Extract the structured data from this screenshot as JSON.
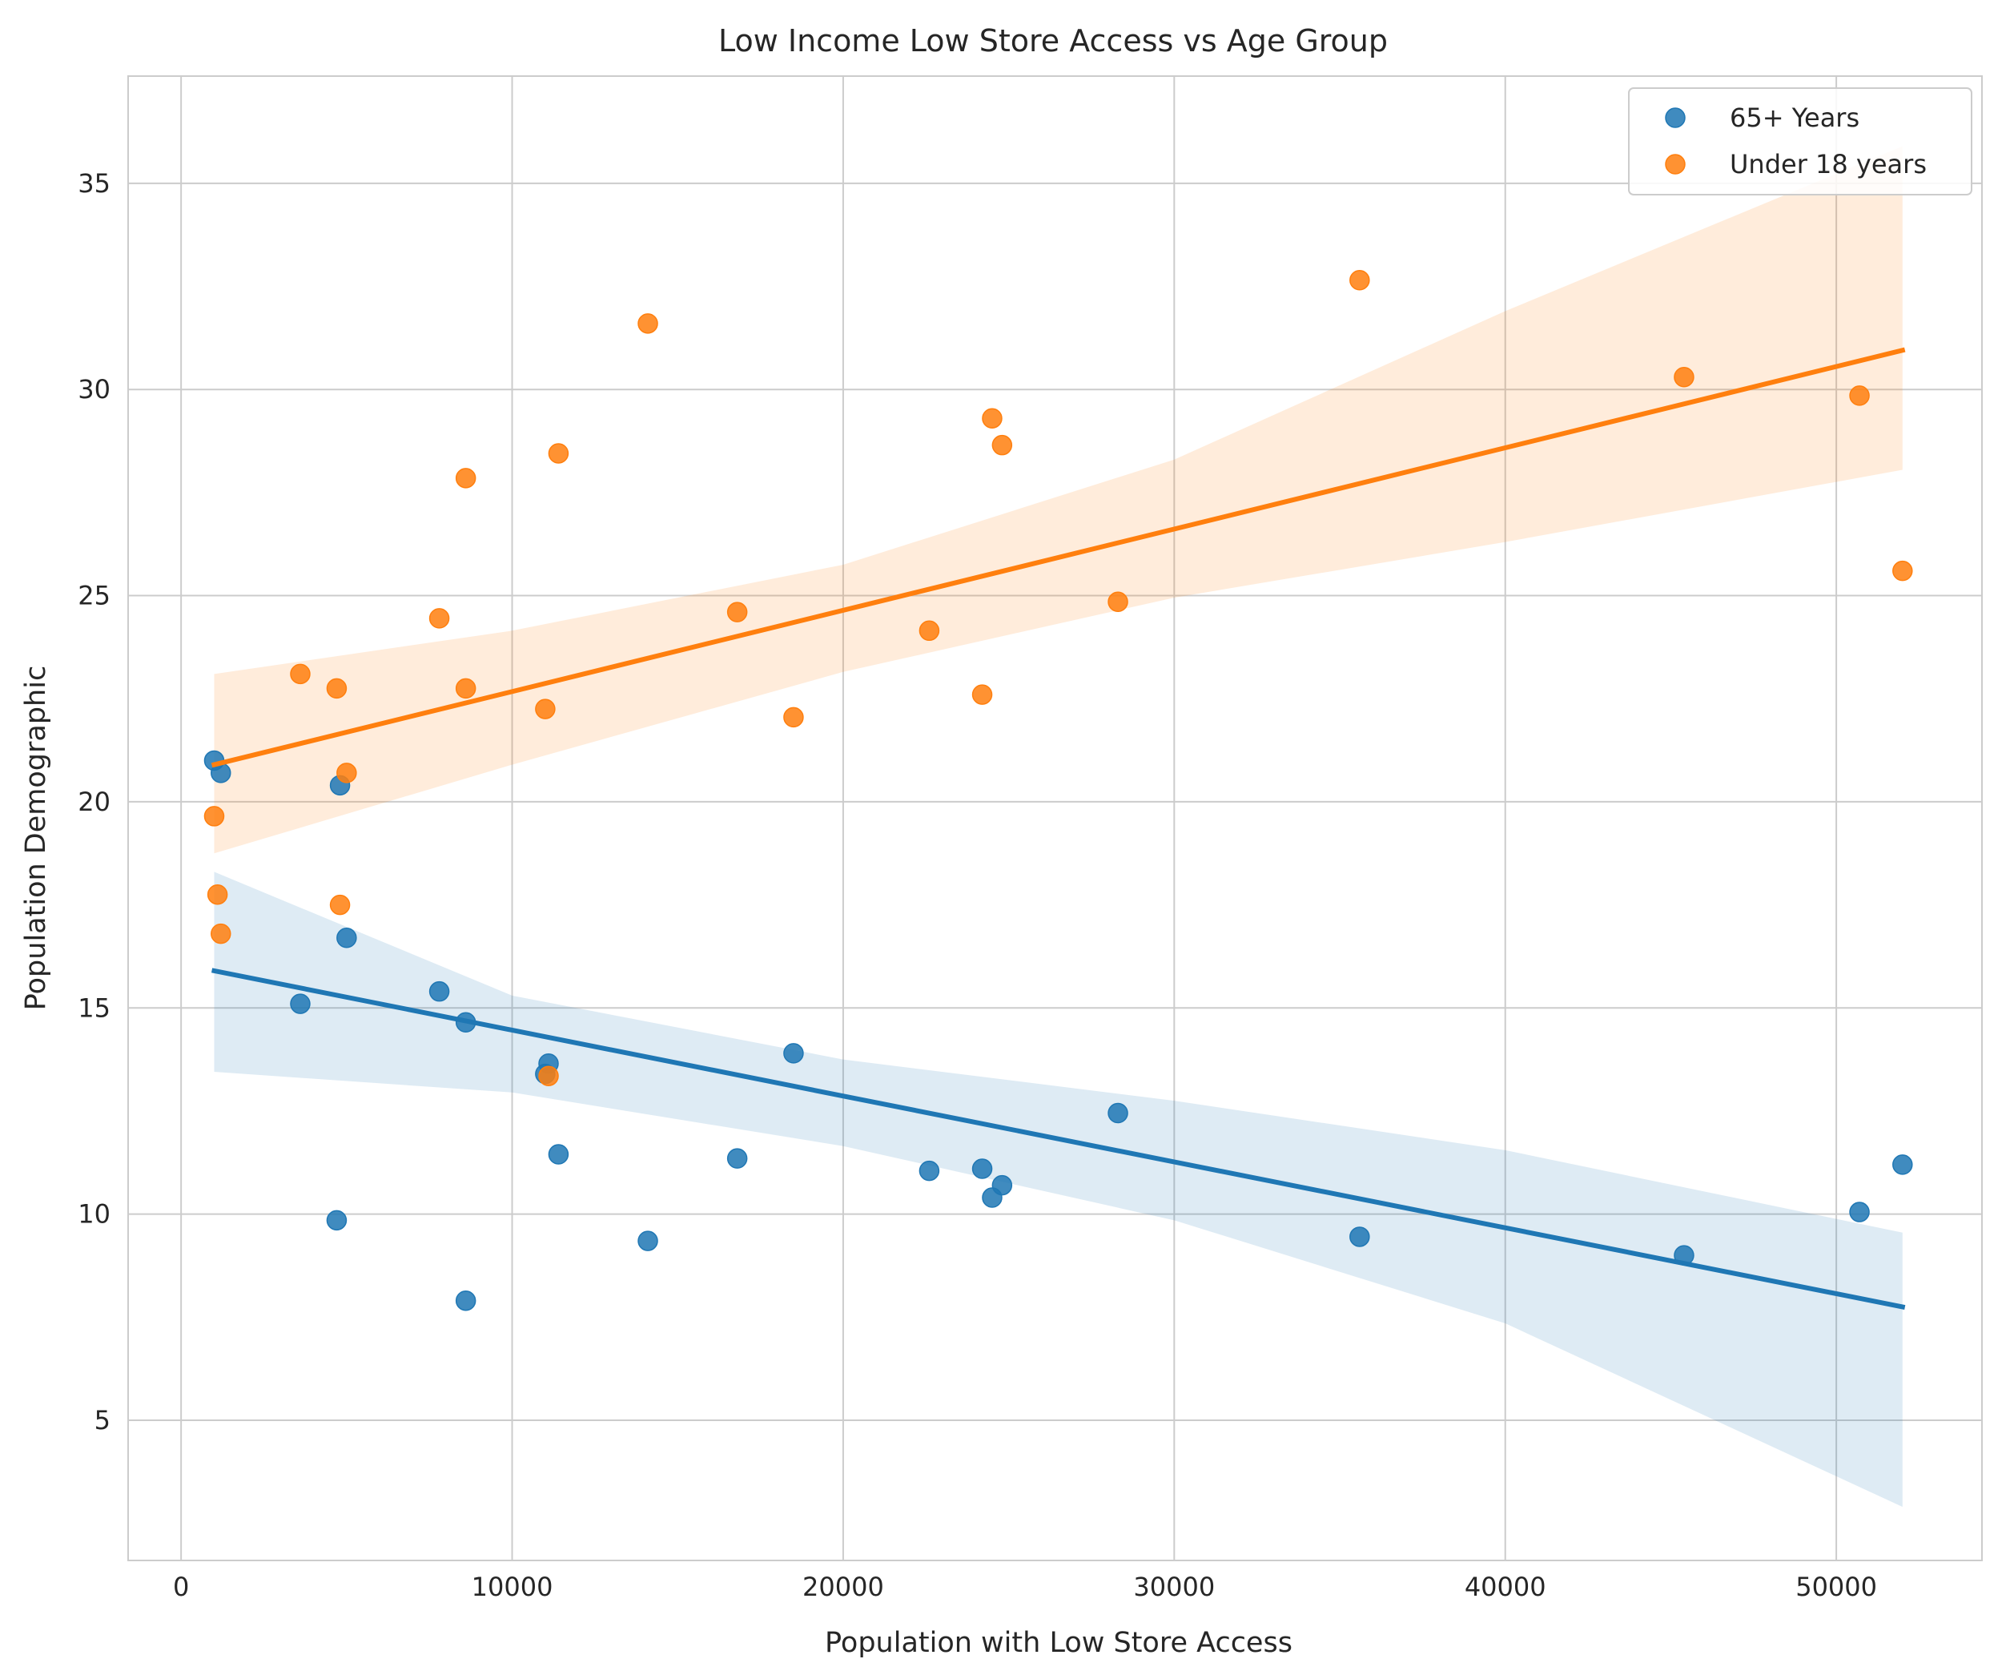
{
  "chart_data": {
    "type": "scatter",
    "title": "Low Income Low Store Access vs Age Group",
    "xlabel": "Population with Low Store Access",
    "ylabel": "Population Demographic",
    "xlim": [
      -1600,
      54400
    ],
    "ylim": [
      1.6,
      37.6
    ],
    "xticks": [
      0,
      10000,
      20000,
      30000,
      40000,
      50000
    ],
    "yticks": [
      5,
      10,
      15,
      20,
      25,
      30,
      35
    ],
    "grid": true,
    "legend_position": "top-right",
    "series": [
      {
        "name": "65+ Years",
        "color": "#1f77b4",
        "points": [
          [
            1000,
            21.0
          ],
          [
            1200,
            20.7
          ],
          [
            3600,
            15.1
          ],
          [
            4700,
            9.85
          ],
          [
            4800,
            20.4
          ],
          [
            5000,
            16.7
          ],
          [
            7800,
            15.4
          ],
          [
            8600,
            14.65
          ],
          [
            8600,
            7.9
          ],
          [
            11000,
            13.4
          ],
          [
            11100,
            13.65
          ],
          [
            11400,
            11.45
          ],
          [
            14100,
            9.35
          ],
          [
            16800,
            11.35
          ],
          [
            18500,
            13.9
          ],
          [
            22600,
            11.05
          ],
          [
            24200,
            11.1
          ],
          [
            24500,
            10.4
          ],
          [
            24800,
            10.7
          ],
          [
            28300,
            12.45
          ],
          [
            35600,
            9.45
          ],
          [
            45400,
            9.0
          ],
          [
            50700,
            10.05
          ],
          [
            52000,
            11.2
          ]
        ],
        "regression": {
          "x": [
            1000,
            52000
          ],
          "y": [
            15.9,
            7.75
          ]
        },
        "ci_band": {
          "x": [
            1000,
            10000,
            20000,
            30000,
            40000,
            52000
          ],
          "lower": [
            13.45,
            12.95,
            11.65,
            9.85,
            7.35,
            2.9
          ],
          "upper": [
            18.3,
            15.3,
            13.75,
            12.75,
            11.55,
            9.55
          ]
        }
      },
      {
        "name": "Under 18 years",
        "color": "#ff7f0e",
        "points": [
          [
            1000,
            19.65
          ],
          [
            1100,
            17.75
          ],
          [
            1200,
            16.8
          ],
          [
            3600,
            23.1
          ],
          [
            4700,
            22.75
          ],
          [
            4800,
            17.5
          ],
          [
            5000,
            20.7
          ],
          [
            7800,
            24.45
          ],
          [
            8600,
            27.85
          ],
          [
            8600,
            22.75
          ],
          [
            11000,
            22.25
          ],
          [
            11100,
            13.35
          ],
          [
            11400,
            28.45
          ],
          [
            14100,
            31.6
          ],
          [
            16800,
            24.6
          ],
          [
            18500,
            22.05
          ],
          [
            22600,
            24.15
          ],
          [
            24200,
            22.6
          ],
          [
            24500,
            29.3
          ],
          [
            24800,
            28.65
          ],
          [
            28300,
            24.85
          ],
          [
            35600,
            32.65
          ],
          [
            45400,
            30.3
          ],
          [
            50700,
            29.85
          ],
          [
            52000,
            25.6
          ]
        ],
        "regression": {
          "x": [
            1000,
            52000
          ],
          "y": [
            20.9,
            30.95
          ]
        },
        "ci_band": {
          "x": [
            1000,
            10000,
            20000,
            30000,
            40000,
            52000
          ],
          "lower": [
            18.75,
            20.9,
            23.15,
            24.95,
            26.3,
            28.05
          ],
          "upper": [
            23.1,
            24.15,
            25.75,
            28.3,
            31.9,
            35.9
          ]
        }
      }
    ]
  }
}
